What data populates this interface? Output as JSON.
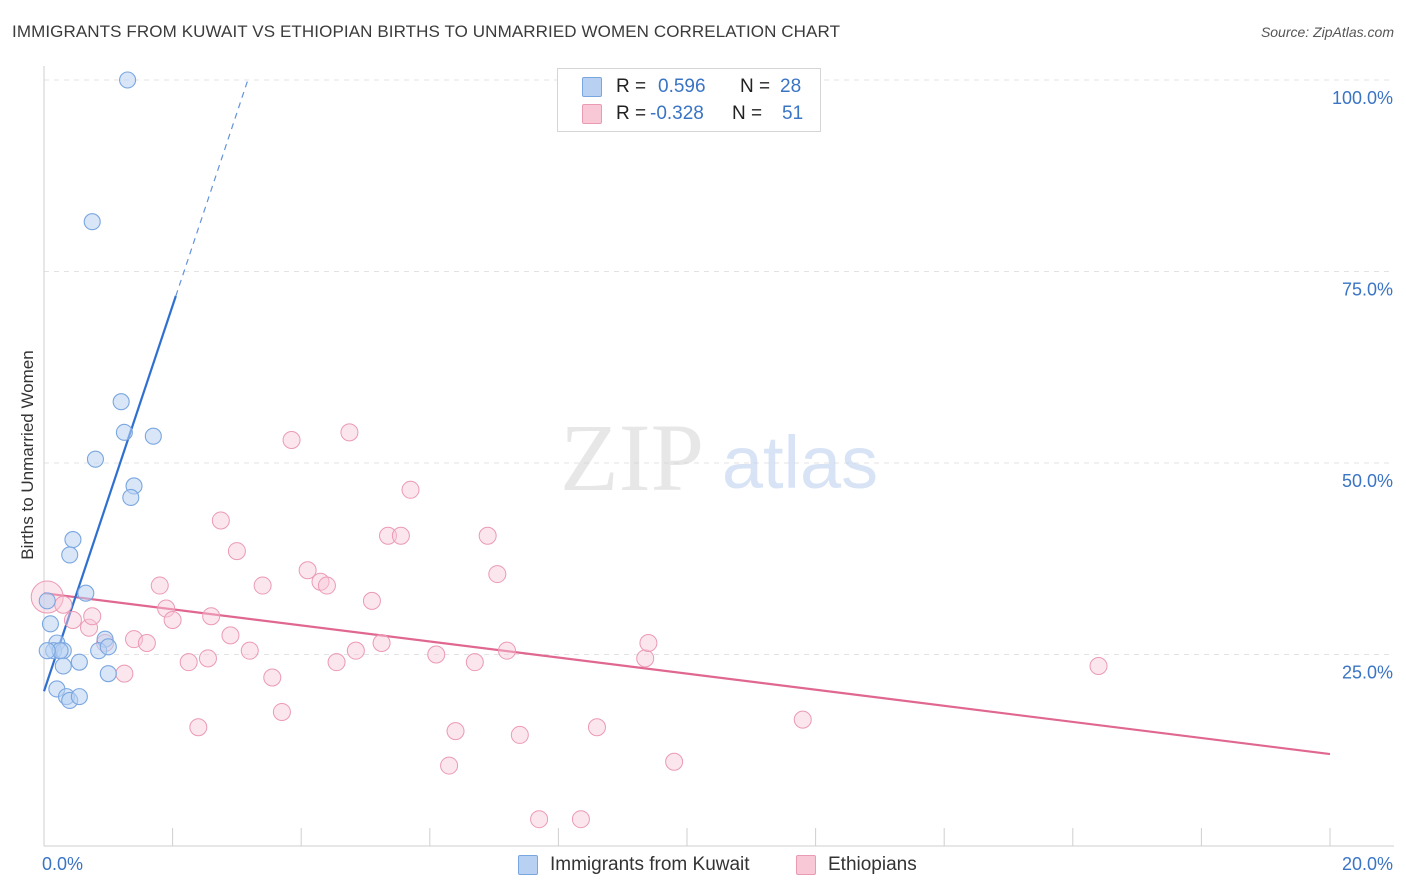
{
  "header": {
    "title": "IMMIGRANTS FROM KUWAIT VS ETHIOPIAN BIRTHS TO UNMARRIED WOMEN CORRELATION CHART",
    "source": "Source: ZipAtlas.com"
  },
  "watermark": {
    "zip": "ZIP",
    "atlas": "atlas"
  },
  "legend": {
    "series": [
      {
        "r_label": "R =",
        "r_value": "0.596",
        "n_label": "N =",
        "n_value": "28"
      },
      {
        "r_label": "R =",
        "r_value": "-0.328",
        "n_label": "N =",
        "n_value": "51"
      }
    ]
  },
  "colors": {
    "kuwait_fill": "#b8d1f2",
    "kuwait_stroke": "#7aa6e0",
    "kuwait_line": "#2f6fd0",
    "ethiopian_fill": "#f8c8d6",
    "ethiopian_stroke": "#eb9ab4",
    "ethiopian_line": "#e0678f",
    "axis_text": "#3a74c4",
    "grid": "#e3e3e3"
  },
  "chart_data": {
    "type": "scatter",
    "ylabel": "Births to Unmarried Women",
    "xlim": [
      0,
      20
    ],
    "ylim": [
      0,
      100
    ],
    "x_tick_labels": [
      "0.0%",
      "20.0%"
    ],
    "y_tick_labels": [
      "25.0%",
      "50.0%",
      "75.0%",
      "100.0%"
    ],
    "y_ticks": [
      25,
      50,
      75,
      100
    ],
    "grid": true,
    "legend_position": "bottom",
    "series": [
      {
        "name": "Immigrants from Kuwait",
        "points": [
          [
            1.3,
            100
          ],
          [
            0.75,
            81.5
          ],
          [
            1.2,
            58
          ],
          [
            1.25,
            54
          ],
          [
            1.7,
            53.5
          ],
          [
            0.8,
            50.5
          ],
          [
            1.4,
            47
          ],
          [
            1.35,
            45.5
          ],
          [
            0.45,
            40
          ],
          [
            0.4,
            38
          ],
          [
            0.05,
            32
          ],
          [
            0.65,
            33
          ],
          [
            0.1,
            29
          ],
          [
            0.95,
            27
          ],
          [
            0.2,
            26.5
          ],
          [
            0.15,
            25.5
          ],
          [
            0.3,
            25.5
          ],
          [
            0.25,
            25.5
          ],
          [
            0.85,
            25.5
          ],
          [
            1.0,
            26
          ],
          [
            0.55,
            24
          ],
          [
            0.3,
            23.5
          ],
          [
            1.0,
            22.5
          ],
          [
            0.2,
            20.5
          ],
          [
            0.35,
            19.5
          ],
          [
            0.4,
            19
          ],
          [
            0.55,
            19.5
          ],
          [
            0.05,
            25.5
          ]
        ],
        "trend": {
          "x_start": 0.0,
          "x_end": 2.05,
          "y_start": 20.2,
          "y_end": 71.8,
          "dashed_to_y": 100
        }
      },
      {
        "name": "Ethiopians",
        "points": [
          [
            0.05,
            32.5
          ],
          [
            0.3,
            31.5
          ],
          [
            0.45,
            29.5
          ],
          [
            0.7,
            28.5
          ],
          [
            0.75,
            30
          ],
          [
            0.95,
            26.5
          ],
          [
            1.25,
            22.5
          ],
          [
            1.8,
            34
          ],
          [
            1.4,
            27
          ],
          [
            1.6,
            26.5
          ],
          [
            1.9,
            31
          ],
          [
            2.0,
            29.5
          ],
          [
            2.25,
            24
          ],
          [
            2.4,
            15.5
          ],
          [
            2.6,
            30
          ],
          [
            2.75,
            42.5
          ],
          [
            2.9,
            27.5
          ],
          [
            3.0,
            38.5
          ],
          [
            3.2,
            25.5
          ],
          [
            3.4,
            34
          ],
          [
            3.55,
            22
          ],
          [
            3.7,
            17.5
          ],
          [
            3.85,
            53
          ],
          [
            4.1,
            36
          ],
          [
            4.3,
            34.5
          ],
          [
            4.4,
            34
          ],
          [
            4.55,
            24
          ],
          [
            4.75,
            54
          ],
          [
            4.85,
            25.5
          ],
          [
            5.1,
            32
          ],
          [
            5.25,
            26.5
          ],
          [
            5.35,
            40.5
          ],
          [
            5.55,
            40.5
          ],
          [
            5.7,
            46.5
          ],
          [
            6.1,
            25
          ],
          [
            6.3,
            10.5
          ],
          [
            6.4,
            15
          ],
          [
            6.7,
            24
          ],
          [
            6.9,
            40.5
          ],
          [
            7.05,
            35.5
          ],
          [
            7.2,
            25.5
          ],
          [
            7.4,
            14.5
          ],
          [
            7.7,
            3.5
          ],
          [
            8.35,
            3.5
          ],
          [
            8.6,
            15.5
          ],
          [
            9.35,
            24.5
          ],
          [
            9.4,
            26.5
          ],
          [
            9.8,
            11
          ],
          [
            11.8,
            16.5
          ],
          [
            16.4,
            23.5
          ],
          [
            2.55,
            24.5
          ]
        ],
        "trend": {
          "x_start": 0.0,
          "x_end": 20.0,
          "y_start": 33.0,
          "y_end": 12.0
        }
      }
    ]
  }
}
